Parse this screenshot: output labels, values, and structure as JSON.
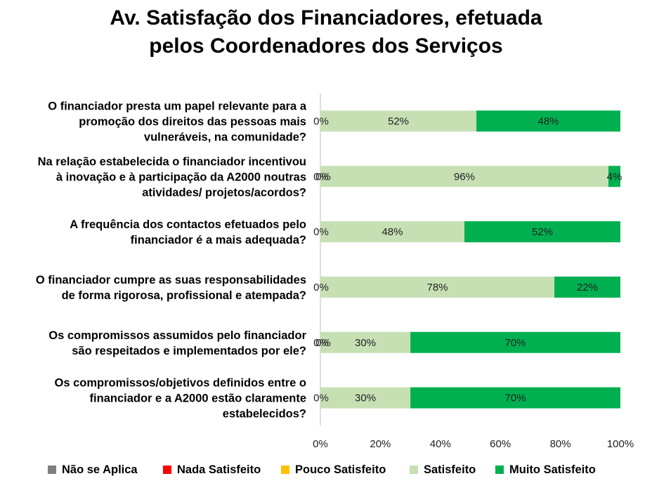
{
  "chart_data": {
    "type": "bar",
    "orientation": "horizontal",
    "stacked": "percent",
    "title_lines": [
      "Av. Satisfação dos Financiadores, efetuada",
      "pelos Coordenadores dos Serviços"
    ],
    "categories": [
      [
        "O financiador presta um papel relevante para a",
        "promoção dos direitos das pessoas mais",
        "vulneráveis, na comunidade?"
      ],
      [
        "Na relação estabelecida o financiador incentivou",
        "à inovação e à participação da A2000 noutras",
        "atividades/ projetos/acordos?"
      ],
      [
        "A frequência dos contactos efetuados pelo",
        "financiador é a mais adequada?"
      ],
      [
        "O financiador cumpre as suas responsabilidades",
        "de forma rigorosa, profissional e atempada?"
      ],
      [
        "Os compromissos assumidos pelo financiador",
        "são respeitados e implementados por ele?"
      ],
      [
        "Os compromissos/objetivos definidos entre o",
        "financiador e a A2000 estão claramente",
        "estabelecidos?"
      ]
    ],
    "series": [
      {
        "name": "Não se Aplica",
        "color": "#7f7f7f",
        "values": [
          0,
          0,
          0,
          0,
          0,
          0
        ]
      },
      {
        "name": "Nada Satisfeito",
        "color": "#ff0000",
        "values": [
          0,
          0,
          0,
          0,
          0,
          0
        ]
      },
      {
        "name": "Pouco Satisfeito",
        "color": "#ffc000",
        "values": [
          0,
          0,
          0,
          0,
          0,
          0
        ]
      },
      {
        "name": "Satisfeito",
        "color": "#c6e0b4",
        "values": [
          52,
          96,
          48,
          78,
          30,
          30
        ]
      },
      {
        "name": "Muito Satisfeito",
        "color": "#00b050",
        "values": [
          48,
          4,
          52,
          22,
          70,
          70
        ]
      }
    ],
    "data_labels": [
      [
        "0%",
        "52%",
        "48%"
      ],
      [
        "0%",
        "0%",
        "96%",
        "4%"
      ],
      [
        "0%",
        "48%",
        "52%"
      ],
      [
        "0%",
        "78%",
        "22%"
      ],
      [
        "0%",
        "0%",
        "30%",
        "70%"
      ],
      [
        "0%",
        "30%",
        "70%"
      ]
    ],
    "xlim": [
      0,
      100
    ],
    "x_ticks": [
      "0%",
      "20%",
      "40%",
      "60%",
      "80%",
      "100%"
    ],
    "grid": false,
    "legend_position": "bottom"
  }
}
